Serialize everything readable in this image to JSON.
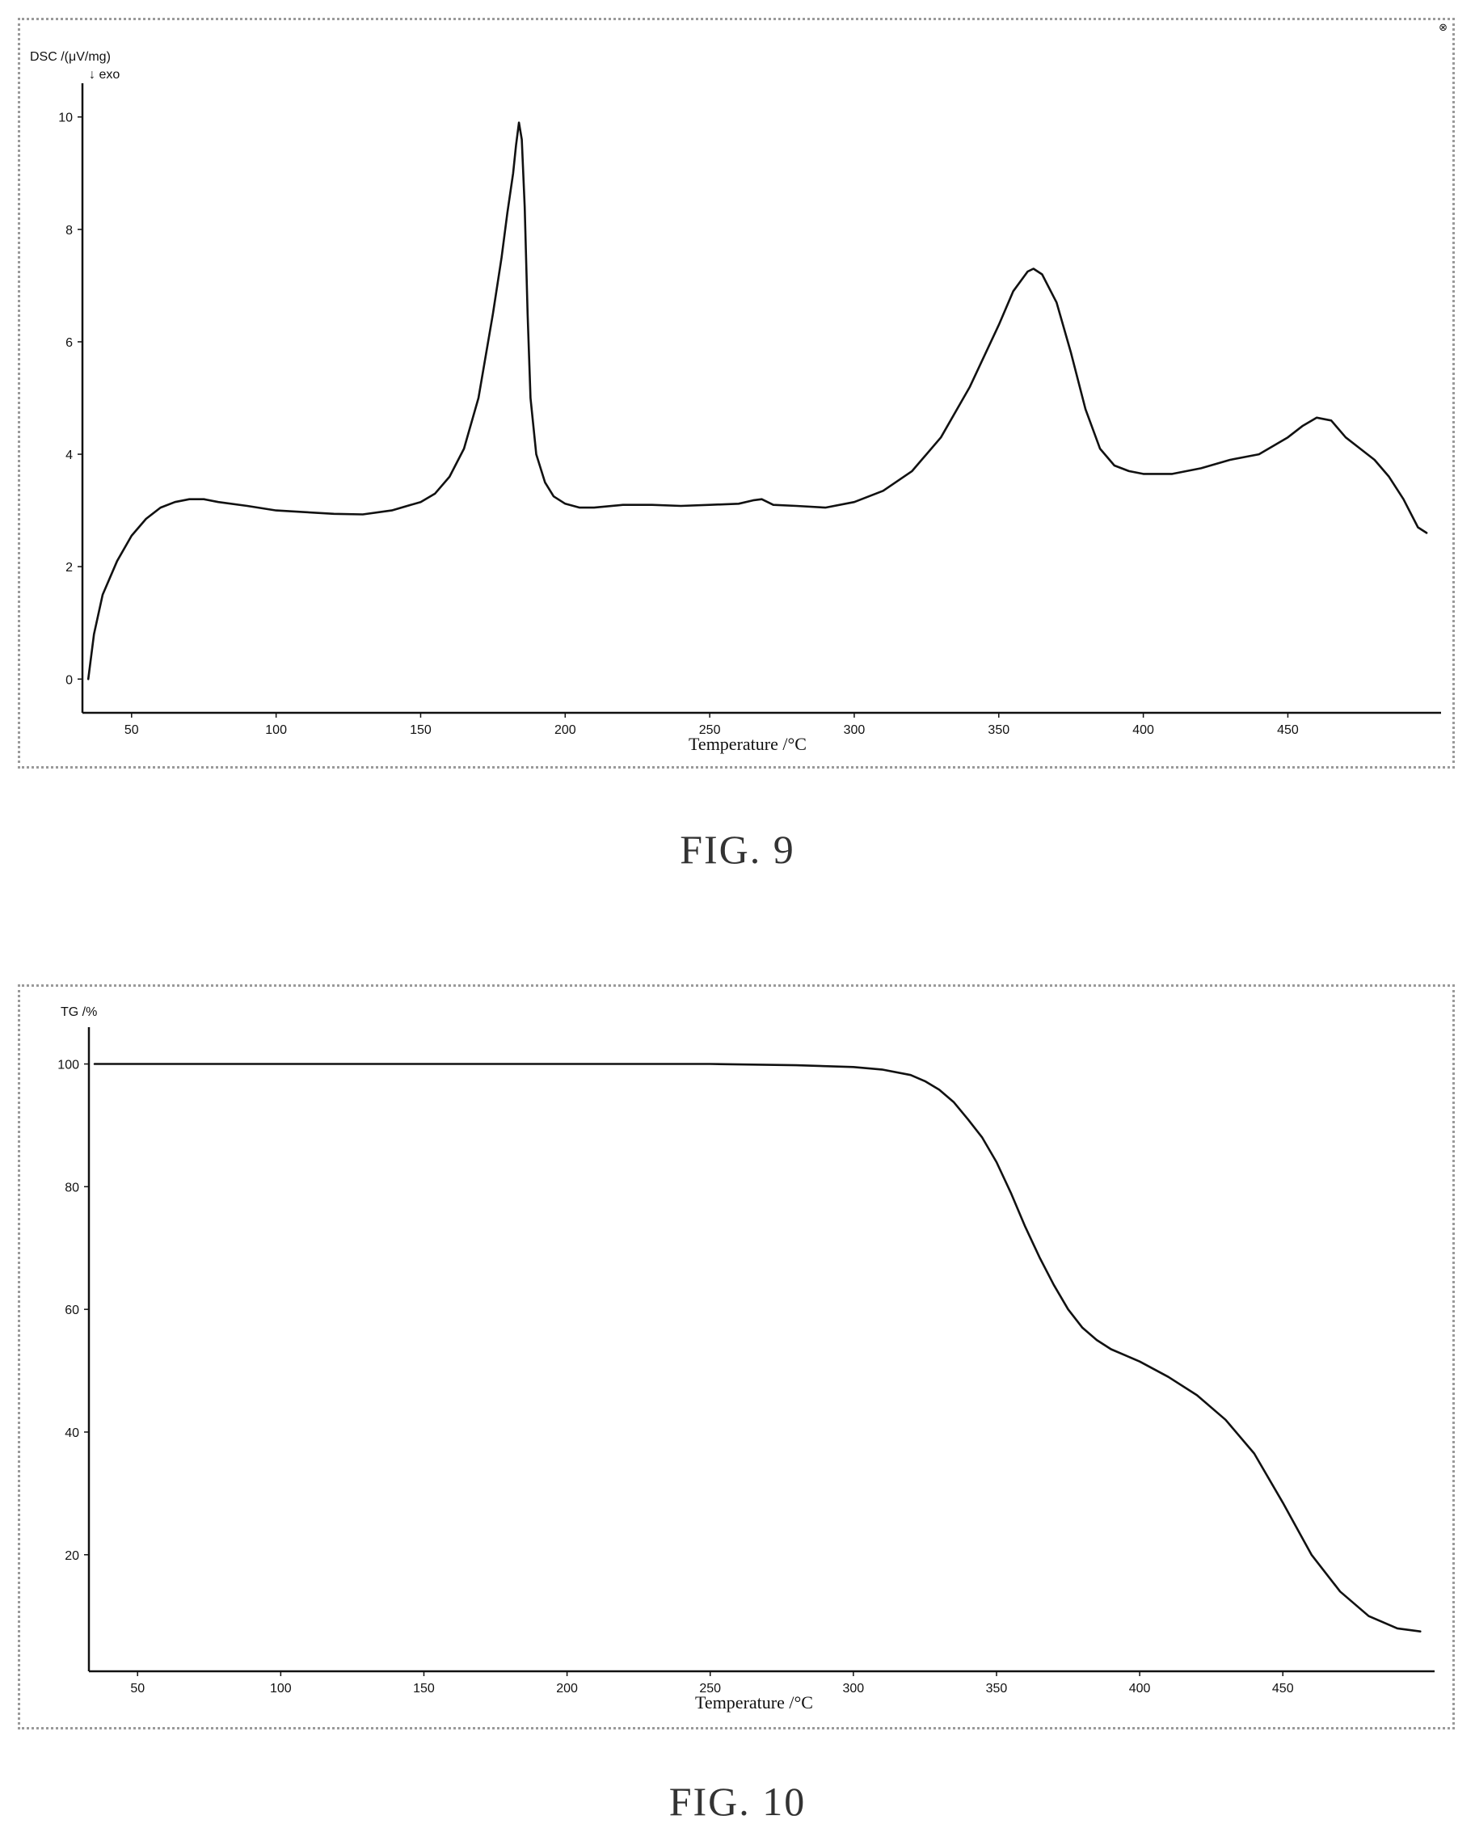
{
  "chart_data": [
    {
      "type": "line",
      "figure_caption": "FIG. 9",
      "ylabel": "DSC /(μV/mg)",
      "y_annotation": "↓ exo",
      "xlabel": "Temperature /°C",
      "xlim": [
        33,
        503
      ],
      "ylim": [
        -0.6,
        10.6
      ],
      "xticks": [
        50,
        100,
        150,
        200,
        250,
        300,
        350,
        400,
        450
      ],
      "yticks": [
        0,
        2,
        4,
        6,
        8,
        10
      ],
      "grid": false,
      "series": [
        {
          "x": [
            35,
            37,
            40,
            45,
            50,
            55,
            60,
            65,
            70,
            75,
            80,
            90,
            100,
            110,
            120,
            130,
            140,
            150,
            155,
            160,
            165,
            170,
            175,
            178,
            180,
            182,
            183,
            184,
            185,
            186,
            187,
            188,
            190,
            193,
            196,
            200,
            205,
            210,
            220,
            230,
            240,
            250,
            260,
            265,
            268,
            272,
            280,
            290,
            300,
            310,
            320,
            330,
            340,
            350,
            355,
            360,
            362,
            365,
            370,
            375,
            380,
            385,
            390,
            395,
            400,
            410,
            420,
            430,
            440,
            450,
            455,
            460,
            465,
            470,
            475,
            480,
            485,
            490,
            495,
            498
          ],
          "y": [
            0.0,
            0.8,
            1.5,
            2.1,
            2.55,
            2.85,
            3.05,
            3.15,
            3.2,
            3.2,
            3.15,
            3.08,
            3.0,
            2.97,
            2.94,
            2.93,
            3.0,
            3.15,
            3.3,
            3.6,
            4.1,
            5.0,
            6.5,
            7.5,
            8.3,
            9.0,
            9.5,
            9.9,
            9.6,
            8.4,
            6.5,
            5.0,
            4.0,
            3.5,
            3.25,
            3.12,
            3.05,
            3.05,
            3.1,
            3.1,
            3.08,
            3.1,
            3.12,
            3.18,
            3.2,
            3.1,
            3.08,
            3.05,
            3.15,
            3.35,
            3.7,
            4.3,
            5.2,
            6.3,
            6.9,
            7.25,
            7.3,
            7.2,
            6.7,
            5.8,
            4.8,
            4.1,
            3.8,
            3.7,
            3.65,
            3.65,
            3.75,
            3.9,
            4.0,
            4.3,
            4.5,
            4.65,
            4.6,
            4.3,
            4.1,
            3.9,
            3.6,
            3.2,
            2.7,
            2.6
          ]
        }
      ]
    },
    {
      "type": "line",
      "figure_caption": "FIG. 10",
      "ylabel": "TG /%",
      "xlabel": "Temperature /°C",
      "xlim": [
        33,
        503
      ],
      "ylim": [
        1,
        106
      ],
      "xticks": [
        50,
        100,
        150,
        200,
        250,
        300,
        350,
        400,
        450
      ],
      "yticks": [
        20,
        40,
        60,
        80,
        100
      ],
      "grid": false,
      "series": [
        {
          "x": [
            35,
            50,
            100,
            150,
            200,
            250,
            280,
            300,
            310,
            320,
            325,
            330,
            335,
            340,
            345,
            350,
            355,
            360,
            365,
            370,
            375,
            380,
            385,
            390,
            395,
            400,
            410,
            420,
            430,
            440,
            450,
            460,
            470,
            480,
            490,
            498
          ],
          "y": [
            100,
            100,
            100,
            100,
            100,
            100,
            99.8,
            99.5,
            99.1,
            98.2,
            97.2,
            95.8,
            93.8,
            91.0,
            88.0,
            84.0,
            79.0,
            73.5,
            68.5,
            64.0,
            60.0,
            57.0,
            55.0,
            53.5,
            52.5,
            51.5,
            49.0,
            46.0,
            42.0,
            36.5,
            28.5,
            20.0,
            14.0,
            10.0,
            8.0,
            7.5
          ]
        }
      ]
    }
  ]
}
